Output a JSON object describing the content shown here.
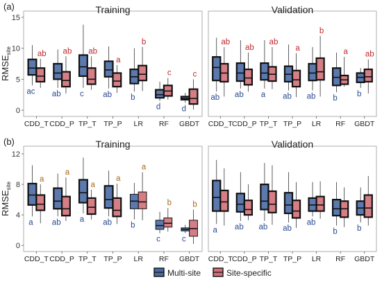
{
  "legend": {
    "items": [
      {
        "label": "Multi-site",
        "color": "#4a6aa5"
      },
      {
        "label": "Site-specific",
        "color": "#d07078"
      }
    ]
  },
  "chart_data": [
    {
      "type": "boxplot",
      "panel_label": "(a)",
      "title": "Training",
      "ylabel_main": "RMSE",
      "ylabel_sub": "site",
      "ylim": [
        -1,
        16
      ],
      "yticks": [
        0,
        5,
        10,
        15
      ],
      "categories": [
        "CDD_T",
        "CDD_P",
        "TP_T",
        "TP_P",
        "LR",
        "RF",
        "GBDT"
      ],
      "series": [
        {
          "name": "Multi-site",
          "boxes": [
            {
              "min": 4.0,
              "q1": 5.7,
              "median": 6.8,
              "q3": 8.2,
              "max": 10.5
            },
            {
              "min": 3.6,
              "q1": 5.0,
              "median": 6.0,
              "q3": 7.5,
              "max": 9.8
            },
            {
              "min": 3.6,
              "q1": 5.5,
              "median": 7.0,
              "q3": 8.9,
              "max": 13.8
            },
            {
              "min": 3.5,
              "q1": 5.4,
              "median": 6.5,
              "q3": 7.9,
              "max": 10.3
            },
            {
              "min": 3.0,
              "q1": 4.3,
              "median": 5.4,
              "q3": 6.6,
              "max": 10.0
            },
            {
              "min": 1.5,
              "q1": 2.0,
              "median": 2.5,
              "q3": 3.3,
              "max": 4.6
            },
            {
              "min": 1.2,
              "q1": 1.7,
              "median": 1.9,
              "q3": 2.2,
              "max": 2.8
            }
          ]
        },
        {
          "name": "Site-specific",
          "boxes": [
            {
              "min": 3.6,
              "q1": 4.6,
              "median": 5.5,
              "q3": 6.8,
              "max": 8.3
            },
            {
              "min": 2.7,
              "q1": 3.8,
              "median": 4.8,
              "q3": 6.2,
              "max": 8.7
            },
            {
              "min": 3.3,
              "q1": 4.2,
              "median": 5.0,
              "q3": 6.8,
              "max": 8.7
            },
            {
              "min": 2.8,
              "q1": 3.8,
              "median": 4.7,
              "q3": 6.0,
              "max": 7.3
            },
            {
              "min": 3.1,
              "q1": 4.8,
              "median": 5.8,
              "q3": 7.2,
              "max": 10.2
            },
            {
              "min": 1.7,
              "q1": 2.3,
              "median": 3.1,
              "q3": 4.0,
              "max": 5.2
            },
            {
              "min": 0.1,
              "q1": 1.0,
              "median": 1.9,
              "q3": 3.4,
              "max": 5.0
            }
          ]
        }
      ],
      "letters": {
        "Multi-site": [
          "ac",
          "ab",
          "c",
          "ab",
          "b",
          "d",
          "d"
        ],
        "Site-specific": [
          "ab",
          "ab",
          "ab",
          "a",
          "b",
          "c",
          "c"
        ]
      }
    },
    {
      "type": "boxplot",
      "panel_label": "",
      "title": "Validation",
      "ylim": [
        -1,
        16
      ],
      "yticks": [
        0,
        5,
        10,
        15
      ],
      "categories": [
        "CDD_T",
        "CDD_P",
        "TP_T",
        "TP_P",
        "LR",
        "RF",
        "GBDT"
      ],
      "series": [
        {
          "name": "Multi-site",
          "boxes": [
            {
              "min": 3.0,
              "q1": 4.8,
              "median": 6.9,
              "q3": 8.6,
              "max": 11.7
            },
            {
              "min": 3.5,
              "q1": 4.7,
              "median": 6.0,
              "q3": 7.6,
              "max": 11.3
            },
            {
              "min": 3.5,
              "q1": 4.9,
              "median": 6.0,
              "q3": 7.6,
              "max": 11.3
            },
            {
              "min": 3.2,
              "q1": 4.6,
              "median": 5.8,
              "q3": 7.1,
              "max": 10.6
            },
            {
              "min": 3.2,
              "q1": 4.8,
              "median": 6.0,
              "q3": 7.5,
              "max": 10.2
            },
            {
              "min": 2.9,
              "q1": 4.0,
              "median": 5.3,
              "q3": 6.8,
              "max": 9.3
            },
            {
              "min": 3.6,
              "q1": 4.5,
              "median": 5.3,
              "q3": 6.0,
              "max": 6.8
            }
          ]
        },
        {
          "name": "Site-specific",
          "boxes": [
            {
              "min": 2.2,
              "q1": 4.6,
              "median": 6.0,
              "q3": 7.5,
              "max": 10.2
            },
            {
              "min": 3.0,
              "q1": 4.1,
              "median": 5.2,
              "q3": 6.6,
              "max": 9.3
            },
            {
              "min": 3.4,
              "q1": 4.7,
              "median": 5.8,
              "q3": 7.0,
              "max": 10.2
            },
            {
              "min": 2.1,
              "q1": 3.8,
              "median": 4.9,
              "q3": 6.4,
              "max": 9.2
            },
            {
              "min": 2.2,
              "q1": 4.9,
              "median": 6.2,
              "q3": 8.4,
              "max": 12.0
            },
            {
              "min": 3.8,
              "q1": 4.2,
              "median": 4.9,
              "q3": 5.6,
              "max": 8.6
            },
            {
              "min": 2.7,
              "q1": 4.6,
              "median": 5.4,
              "q3": 6.6,
              "max": 8.2
            }
          ]
        }
      ],
      "letters": {
        "Multi-site": [
          "ab",
          "ab",
          "a",
          "ab",
          "ab",
          "b",
          "b"
        ],
        "Site-specific": [
          "ab",
          "ab",
          "ab",
          "a",
          "b",
          "a",
          "ab"
        ]
      }
    },
    {
      "type": "boxplot",
      "panel_label": "(b)",
      "title": "Training",
      "ylabel_main": "RMSE",
      "ylabel_sub": "site",
      "ylim": [
        -0.8,
        13
      ],
      "yticks": [
        0,
        4,
        8,
        12
      ],
      "categories": [
        "CDD_T",
        "CDD_P",
        "TP_T",
        "TP_P",
        "LR",
        "RF",
        "GBDT"
      ],
      "series": [
        {
          "name": "Multi-site",
          "boxes": [
            {
              "min": 3.8,
              "q1": 5.3,
              "median": 6.6,
              "q3": 8.1,
              "max": 10.5
            },
            {
              "min": 3.8,
              "q1": 4.8,
              "median": 5.8,
              "q3": 7.5,
              "max": 9.4
            },
            {
              "min": 4.2,
              "q1": 5.6,
              "median": 6.9,
              "q3": 8.6,
              "max": 11.5
            },
            {
              "min": 3.8,
              "q1": 4.9,
              "median": 6.0,
              "q3": 7.8,
              "max": 9.8
            },
            {
              "min": 3.4,
              "q1": 4.8,
              "median": 5.8,
              "q3": 6.7,
              "max": 8.2
            },
            {
              "min": 1.6,
              "q1": 2.1,
              "median": 2.6,
              "q3": 3.3,
              "max": 4.4
            },
            {
              "min": 1.6,
              "q1": 1.9,
              "median": 2.1,
              "q3": 2.3,
              "max": 2.7
            }
          ]
        },
        {
          "name": "Site-specific",
          "boxes": [
            {
              "min": 2.9,
              "q1": 4.6,
              "median": 5.4,
              "q3": 6.6,
              "max": 8.0
            },
            {
              "min": 3.2,
              "q1": 3.9,
              "median": 4.8,
              "q3": 6.4,
              "max": 8.9
            },
            {
              "min": 3.4,
              "q1": 4.1,
              "median": 5.0,
              "q3": 6.2,
              "max": 7.3
            },
            {
              "min": 2.8,
              "q1": 3.8,
              "median": 4.6,
              "q3": 6.2,
              "max": 8.1
            },
            {
              "min": 3.3,
              "q1": 4.8,
              "median": 5.7,
              "q3": 7.0,
              "max": 9.6
            },
            {
              "min": 1.8,
              "q1": 2.4,
              "median": 2.9,
              "q3": 3.6,
              "max": 4.9
            },
            {
              "min": 0.2,
              "q1": 1.2,
              "median": 2.2,
              "q3": 3.3,
              "max": 4.7
            }
          ]
        }
      ],
      "letters": {
        "Multi-site": [
          "a",
          "ab",
          "a",
          "ab",
          "b",
          "c",
          "c"
        ],
        "Site-specific": [
          "a",
          "a",
          "a",
          "a",
          "a",
          "b",
          "b"
        ]
      }
    },
    {
      "type": "boxplot",
      "panel_label": "",
      "title": "Validation",
      "ylim": [
        -0.8,
        13
      ],
      "yticks": [
        0,
        4,
        8,
        12
      ],
      "categories": [
        "CDD_T",
        "CDD_P",
        "TP_T",
        "TP_P",
        "LR",
        "RF",
        "GBDT"
      ],
      "series": [
        {
          "name": "Multi-site",
          "boxes": [
            {
              "min": 2.8,
              "q1": 4.5,
              "median": 6.3,
              "q3": 8.5,
              "max": 11.2
            },
            {
              "min": 3.2,
              "q1": 4.4,
              "median": 5.4,
              "q3": 6.8,
              "max": 9.6
            },
            {
              "min": 3.2,
              "q1": 4.7,
              "median": 5.8,
              "q3": 8.0,
              "max": 10.8
            },
            {
              "min": 3.0,
              "q1": 4.2,
              "median": 5.3,
              "q3": 6.9,
              "max": 9.6
            },
            {
              "min": 3.8,
              "q1": 4.5,
              "median": 5.3,
              "q3": 6.2,
              "max": 8.3
            },
            {
              "min": 2.6,
              "q1": 3.9,
              "median": 4.8,
              "q3": 6.0,
              "max": 8.3
            },
            {
              "min": 3.0,
              "q1": 4.0,
              "median": 4.9,
              "q3": 5.8,
              "max": 7.6
            }
          ]
        },
        {
          "name": "Site-specific",
          "boxes": [
            {
              "min": 2.6,
              "q1": 4.5,
              "median": 5.7,
              "q3": 7.2,
              "max": 10.1
            },
            {
              "min": 3.3,
              "q1": 4.0,
              "median": 4.7,
              "q3": 5.9,
              "max": 8.0
            },
            {
              "min": 2.7,
              "q1": 4.3,
              "median": 5.4,
              "q3": 7.1,
              "max": 10.5
            },
            {
              "min": 2.3,
              "q1": 3.6,
              "median": 4.5,
              "q3": 5.9,
              "max": 8.3
            },
            {
              "min": 3.5,
              "q1": 4.5,
              "median": 5.3,
              "q3": 6.4,
              "max": 8.4
            },
            {
              "min": 2.4,
              "q1": 3.7,
              "median": 4.8,
              "q3": 5.8,
              "max": 7.6
            },
            {
              "min": 2.6,
              "q1": 3.7,
              "median": 4.9,
              "q3": 6.6,
              "max": 9.1
            }
          ]
        }
      ],
      "letters": {
        "Multi-site": [
          "a",
          "ab",
          "ab",
          "ab",
          "ab",
          "b",
          "b"
        ],
        "Site-specific": []
      }
    }
  ]
}
